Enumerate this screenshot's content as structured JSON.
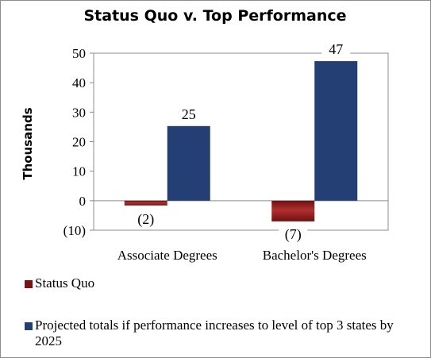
{
  "chart_data": {
    "type": "bar",
    "title": "Status Quo v. Top Performance",
    "ylabel": "Thousands",
    "xlabel": "",
    "categories": [
      "Associate Degrees",
      "Bachelor's Degrees"
    ],
    "ylim": [
      -10,
      50
    ],
    "yticks": [
      {
        "value": 50,
        "label": "50"
      },
      {
        "value": 40,
        "label": "40"
      },
      {
        "value": 30,
        "label": "30"
      },
      {
        "value": 20,
        "label": "20"
      },
      {
        "value": 10,
        "label": "10"
      },
      {
        "value": 0,
        "label": "0"
      },
      {
        "value": -10,
        "label": "(10)"
      }
    ],
    "grid": false,
    "legend_position": "bottom",
    "series": [
      {
        "name": "Status Quo",
        "values": [
          -1.6,
          -7
        ],
        "value_labels": [
          "(2)",
          "(7)"
        ],
        "color": "#8b1a1a"
      },
      {
        "name": "Projected totals if performance increases to level of top 3 states by 2025",
        "values": [
          25.3,
          47.3
        ],
        "value_labels": [
          "25",
          "47"
        ],
        "color": "#233f73"
      }
    ]
  }
}
